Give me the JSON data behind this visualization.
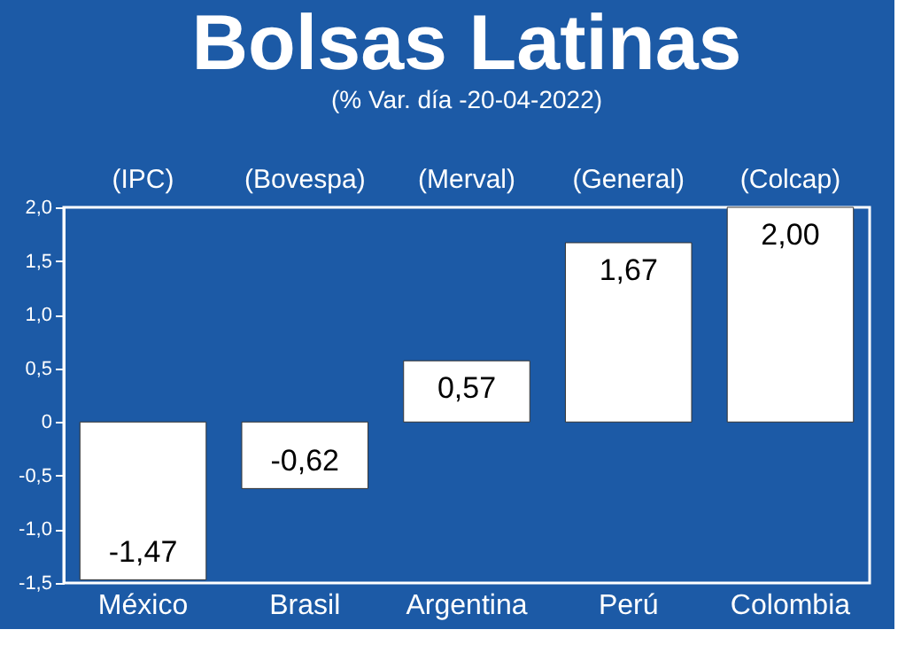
{
  "chart_data": {
    "type": "bar",
    "title": "Bolsas Latinas",
    "subtitle": "(% Var. día -20-04-2022)",
    "categories": [
      "México",
      "Brasil",
      "Argentina",
      "Perú",
      "Colombia"
    ],
    "values": [
      -1.47,
      -0.62,
      0.57,
      1.67,
      2.0
    ],
    "value_labels": [
      "-1,47",
      "-0,62",
      "0,57",
      "1,67",
      "2,00"
    ],
    "color": "#ffffff",
    "annotations": [
      "(IPC)",
      "(Bovespa)",
      "(Merval)",
      "(General)",
      "(Colcap)"
    ],
    "ylim": [
      -1.5,
      2.0
    ],
    "yticks": [
      {
        "value": -1.5,
        "label": "-1,5"
      },
      {
        "value": -1.0,
        "label": "-1,0"
      },
      {
        "value": -0.5,
        "label": "-0,5"
      },
      0,
      {
        "value": 0.5,
        "label": "0,5"
      },
      {
        "value": 1.0,
        "label": "1,0"
      },
      {
        "value": 1.5,
        "label": "1,5"
      },
      {
        "value": 2.0,
        "label": "2,0"
      }
    ],
    "grid": false
  }
}
